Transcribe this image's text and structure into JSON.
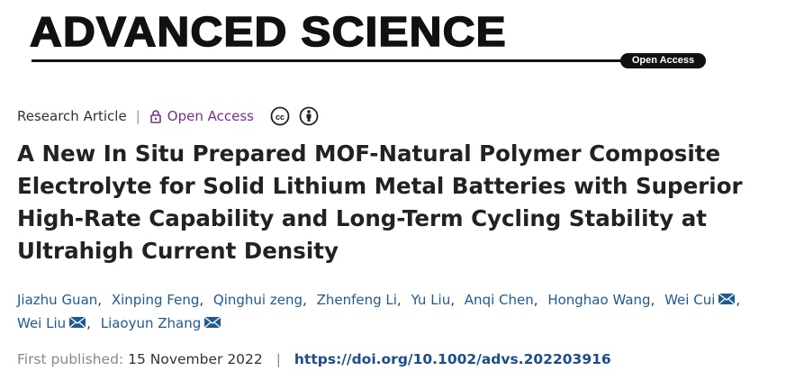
{
  "header": {
    "journal": "ADVANCED SCIENCE",
    "badge": "Open Access"
  },
  "meta": {
    "article_type": "Research Article",
    "access": "Open Access",
    "divider": "|"
  },
  "article": {
    "title": "A New In Situ Prepared MOF-Natural Polymer Composite Electrolyte for Solid Lithium Metal Batteries with Superior High-Rate Capability and Long-Term Cycling Stability at Ultrahigh Current Density",
    "separator": ",",
    "authors": [
      {
        "name": "Jiazhu Guan",
        "email": false
      },
      {
        "name": "Xinping Feng",
        "email": false
      },
      {
        "name": "Qinghui zeng",
        "email": false
      },
      {
        "name": "Zhenfeng Li",
        "email": false
      },
      {
        "name": "Yu Liu",
        "email": false
      },
      {
        "name": "Anqi Chen",
        "email": false
      },
      {
        "name": "Honghao Wang",
        "email": false
      },
      {
        "name": "Wei Cui",
        "email": true
      },
      {
        "name": "Wei Liu",
        "email": true
      },
      {
        "name": "Liaoyun Zhang",
        "email": true
      }
    ],
    "published_label": "First published:",
    "published_date": "15 November 2022",
    "divider": "|",
    "doi": "https://doi.org/10.1002/advs.202203916"
  }
}
